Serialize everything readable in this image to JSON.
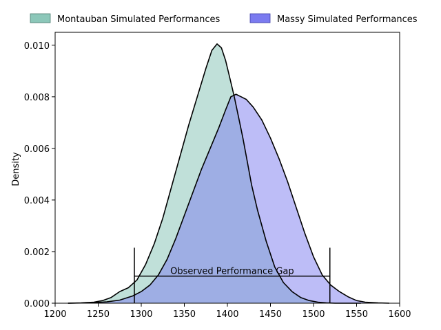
{
  "chart_data": {
    "type": "area",
    "title": "",
    "xlabel": "",
    "ylabel": "Density",
    "xlim": [
      1200,
      1600
    ],
    "ylim": [
      0,
      0.0105
    ],
    "xticks": [
      1200,
      1250,
      1300,
      1350,
      1400,
      1450,
      1500,
      1550,
      1600
    ],
    "xtick_labels": [
      "1200",
      "1250",
      "1300",
      "1350",
      "1400",
      "1450",
      "1500",
      "1550",
      "1600"
    ],
    "yticks": [
      0,
      0.002,
      0.004,
      0.006,
      0.008,
      0.01
    ],
    "ytick_labels": [
      "0.000",
      "0.002",
      "0.004",
      "0.006",
      "0.008",
      "0.010"
    ],
    "legend_position": "top, outside plot",
    "series": [
      {
        "name": "Montauban Simulated Performances",
        "color": "#8cc7b9",
        "x": [
          1215,
          1230,
          1245,
          1255,
          1265,
          1275,
          1285,
          1295,
          1305,
          1315,
          1325,
          1335,
          1345,
          1355,
          1365,
          1375,
          1382,
          1388,
          1393,
          1398,
          1403,
          1408,
          1413,
          1418,
          1423,
          1428,
          1435,
          1445,
          1455,
          1465,
          1475,
          1485,
          1495,
          1505,
          1515,
          1525,
          1540,
          1555
        ],
        "y": [
          0,
          1e-05,
          4e-05,
          0.0001,
          0.00022,
          0.00045,
          0.0006,
          0.0009,
          0.0015,
          0.0023,
          0.0033,
          0.0045,
          0.0057,
          0.0069,
          0.008,
          0.0091,
          0.0098,
          0.01005,
          0.0099,
          0.0094,
          0.0087,
          0.008,
          0.0072,
          0.0064,
          0.0055,
          0.0046,
          0.0036,
          0.0024,
          0.0014,
          0.0008,
          0.00045,
          0.00022,
          0.0001,
          4e-05,
          1e-05,
          0,
          0,
          0
        ]
      },
      {
        "name": "Massy Simulated Performances",
        "color": "#7b7bf0",
        "x": [
          1215,
          1240,
          1260,
          1275,
          1290,
          1300,
          1310,
          1320,
          1330,
          1340,
          1350,
          1360,
          1370,
          1380,
          1390,
          1398,
          1404,
          1410,
          1416,
          1422,
          1430,
          1440,
          1450,
          1460,
          1470,
          1480,
          1490,
          1500,
          1510,
          1520,
          1530,
          1540,
          1550,
          1560,
          1575,
          1588
        ],
        "y": [
          0,
          1e-05,
          5e-05,
          0.00012,
          0.00028,
          0.00045,
          0.0007,
          0.0011,
          0.0017,
          0.0025,
          0.0034,
          0.0043,
          0.0052,
          0.006,
          0.0068,
          0.0075,
          0.008,
          0.0081,
          0.008,
          0.0079,
          0.0076,
          0.0071,
          0.0064,
          0.0056,
          0.0047,
          0.0037,
          0.0027,
          0.0018,
          0.0011,
          0.0007,
          0.00045,
          0.00025,
          0.0001,
          4e-05,
          1e-05,
          0
        ]
      }
    ],
    "annotation": {
      "label": "Observed Performance Gap",
      "x_start": 1292,
      "x_end": 1519,
      "y": 0.00105,
      "cap_top": 0.00215,
      "cap_bottom": 0
    }
  }
}
